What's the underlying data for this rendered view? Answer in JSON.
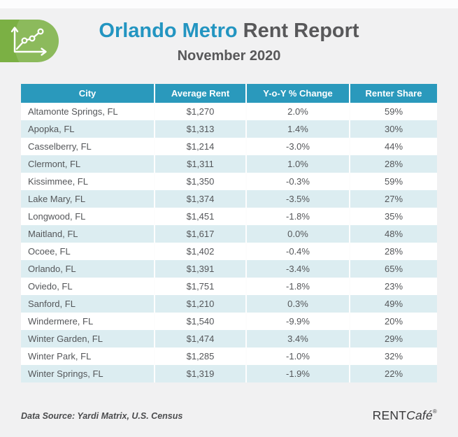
{
  "header": {
    "title_accent": "Orlando Metro",
    "title_rest": "Rent Report",
    "subtitle": "November 2020"
  },
  "chart_data": {
    "type": "table",
    "title": "Orlando Metro Rent Report",
    "subtitle": "November 2020",
    "columns": [
      "City",
      "Average Rent",
      "Y-o-Y % Change",
      "Renter Share"
    ],
    "rows": [
      [
        "Altamonte Springs, FL",
        "$1,270",
        "2.0%",
        "59%"
      ],
      [
        "Apopka, FL",
        "$1,313",
        "1.4%",
        "30%"
      ],
      [
        "Casselberry, FL",
        "$1,214",
        "-3.0%",
        "44%"
      ],
      [
        "Clermont, FL",
        "$1,311",
        "1.0%",
        "28%"
      ],
      [
        "Kissimmee, FL",
        "$1,350",
        "-0.3%",
        "59%"
      ],
      [
        "Lake Mary, FL",
        "$1,374",
        "-3.5%",
        "27%"
      ],
      [
        "Longwood, FL",
        "$1,451",
        "-1.8%",
        "35%"
      ],
      [
        "Maitland, FL",
        "$1,617",
        "0.0%",
        "48%"
      ],
      [
        "Ocoee, FL",
        "$1,402",
        "-0.4%",
        "28%"
      ],
      [
        "Orlando, FL",
        "$1,391",
        "-3.4%",
        "65%"
      ],
      [
        "Oviedo, FL",
        "$1,751",
        "-1.8%",
        "23%"
      ],
      [
        "Sanford, FL",
        "$1,210",
        "0.3%",
        "49%"
      ],
      [
        "Windermere, FL",
        "$1,540",
        "-9.9%",
        "20%"
      ],
      [
        "Winter Garden, FL",
        "$1,474",
        "3.4%",
        "29%"
      ],
      [
        "Winter Park, FL",
        "$1,285",
        "-1.0%",
        "32%"
      ],
      [
        "Winter Springs, FL",
        "$1,319",
        "-1.9%",
        "22%"
      ]
    ]
  },
  "footer": {
    "data_source": "Data Source: Yardi Matrix, U.S. Census",
    "brand_rent": "RENT",
    "brand_cafe": "Café",
    "brand_reg": "®"
  },
  "colors": {
    "table_header_teal": "#2A99BC",
    "row_alternate": "#DCEDF1",
    "title_blue": "#2395C1",
    "title_gray": "#58585A",
    "logo_green": "#7BB044",
    "body_text": "#545659",
    "page_background": "#F1F1F2"
  }
}
